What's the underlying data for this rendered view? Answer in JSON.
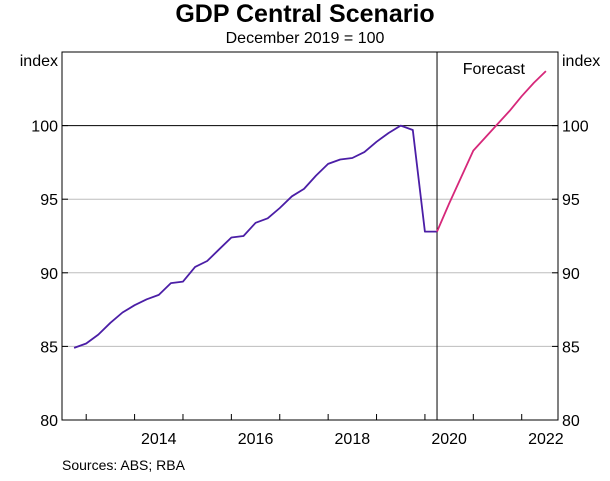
{
  "chart_data": {
    "type": "line",
    "title": "GDP Central Scenario",
    "subtitle": "December 2019 = 100",
    "ylabel_left": "index",
    "ylabel_right": "index",
    "ylim": [
      80,
      105
    ],
    "yticks": [
      80,
      85,
      90,
      95,
      100
    ],
    "xlim": [
      2012.5,
      2022.75
    ],
    "xtick_labels": [
      "2014",
      "2016",
      "2018",
      "2020",
      "2022"
    ],
    "reference_line_y": 100,
    "forecast_start": 2020.25,
    "annotation": "Forecast",
    "source": "Sources: ABS; RBA",
    "series": [
      {
        "color": "#4b1ea6",
        "x": [
          2012.75,
          2013.0,
          2013.25,
          2013.5,
          2013.75,
          2014.0,
          2014.25,
          2014.5,
          2014.75,
          2015.0,
          2015.25,
          2015.5,
          2015.75,
          2016.0,
          2016.25,
          2016.5,
          2016.75,
          2017.0,
          2017.25,
          2017.5,
          2017.75,
          2018.0,
          2018.25,
          2018.5,
          2018.75,
          2019.0,
          2019.25,
          2019.5,
          2019.75,
          2020.0,
          2020.25
        ],
        "y": [
          84.9,
          85.2,
          85.8,
          86.6,
          87.3,
          87.8,
          88.2,
          88.5,
          89.3,
          89.4,
          90.4,
          90.8,
          91.6,
          92.4,
          92.5,
          93.4,
          93.7,
          94.4,
          95.2,
          95.7,
          96.6,
          97.4,
          97.7,
          97.8,
          98.2,
          98.9,
          99.5,
          100.0,
          99.7,
          92.8,
          92.8
        ]
      },
      {
        "color": "#d6287a",
        "x": [
          2020.25,
          2020.5,
          2020.75,
          2021.0,
          2021.25,
          2021.5,
          2021.75,
          2022.0,
          2022.25,
          2022.5
        ],
        "y": [
          92.8,
          94.7,
          96.5,
          98.3,
          99.2,
          100.1,
          101.0,
          102.0,
          102.9,
          103.7
        ]
      }
    ]
  }
}
